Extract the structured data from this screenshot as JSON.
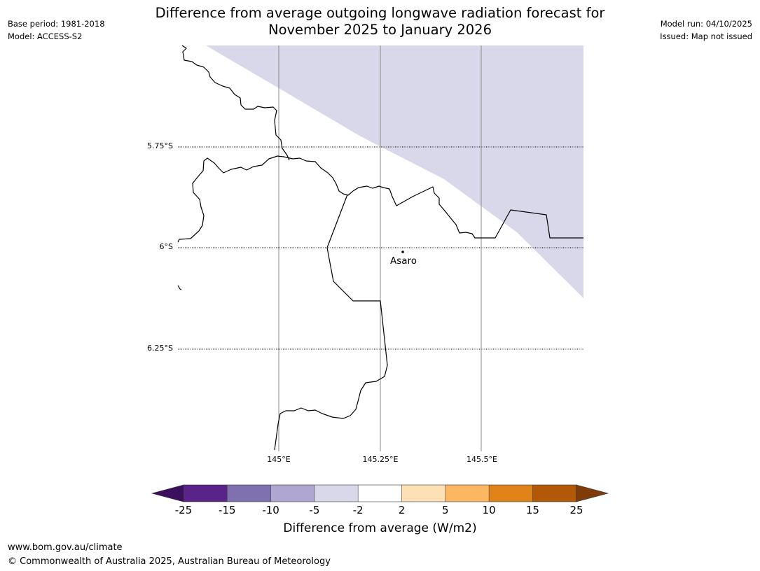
{
  "header": {
    "title_line1": "Difference from average outgoing longwave radiation forecast for",
    "title_line2": "November 2025 to January 2026",
    "base_period": "Base period: 1981-2018",
    "model": "Model: ACCESS-S2",
    "model_run": "Model run: 04/10/2025",
    "issued": "Issued: Map not issued"
  },
  "map": {
    "lat_labels": [
      "5.75°S",
      "6°S",
      "6.25°S"
    ],
    "lon_labels": [
      "145°E",
      "145.25°E",
      "145.5°E"
    ],
    "town": {
      "name": "Asaro"
    },
    "shaded_category": "-5 to -2",
    "shade_color": "#d8d8ea",
    "coastline_color": "#000000"
  },
  "colorbar": {
    "label": "Difference from average (W/m2)",
    "ticks": [
      "-25",
      "-15",
      "-10",
      "-5",
      "-2",
      "2",
      "5",
      "10",
      "15",
      "25"
    ],
    "colors": [
      "#3b0f5e",
      "#5a2389",
      "#8070b0",
      "#b0a6d2",
      "#d8d8ea",
      "#ffffff",
      "#fde0b4",
      "#fdb762",
      "#e0841a",
      "#b35806",
      "#7f3b08"
    ]
  },
  "footer": {
    "url": "www.bom.gov.au/climate",
    "copyright": "© Commonwealth of Australia 2025, Australian Bureau of Meteorology"
  }
}
